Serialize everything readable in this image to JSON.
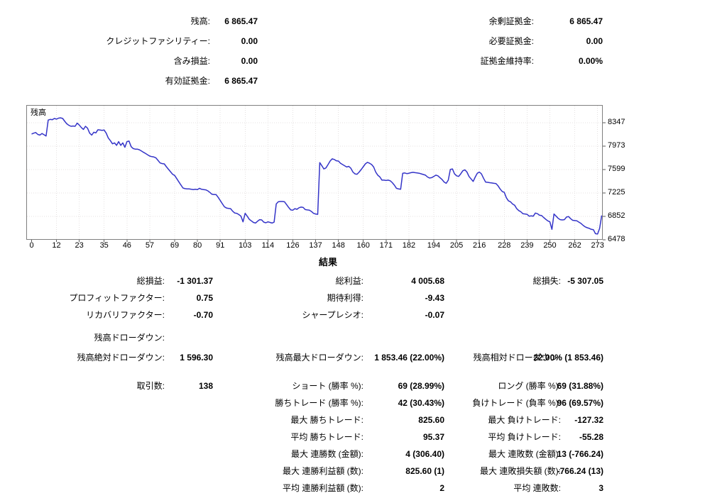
{
  "summary": {
    "left": [
      {
        "label": "残高:",
        "value": "6 865.47"
      },
      {
        "label": "クレジットファシリティー:",
        "value": "0.00"
      },
      {
        "label": "含み損益:",
        "value": "0.00"
      },
      {
        "label": "有効証拠金:",
        "value": "6 865.47"
      }
    ],
    "right": [
      {
        "label": "余剰証拠金:",
        "value": "6 865.47"
      },
      {
        "label": "必要証拠金:",
        "value": "0.00"
      },
      {
        "label": "証拠金維持率:",
        "value": "0.00%"
      }
    ]
  },
  "results": {
    "title": "結果",
    "row1": {
      "c1l": "総損益:",
      "c1v": "-1 301.37",
      "c2l": "総利益:",
      "c2v": "4 005.68",
      "c3l": "総損失:",
      "c3v": "-5 307.05"
    },
    "row2": {
      "c1l": "プロフィットファクター:",
      "c1v": "0.75",
      "c2l": "期待利得:",
      "c2v": "-9.43"
    },
    "row3": {
      "c1l": "リカバリファクター:",
      "c1v": "-0.70",
      "c2l": "シャープレシオ:",
      "c2v": "-0.07"
    },
    "dd_header": "残高ドローダウン:",
    "dd": {
      "c1l": "残高絶対ドローダウン:",
      "c1v": "1 596.30",
      "c2l": "残高最大ドローダウン:",
      "c2v": "1 853.46 (22.00%)",
      "c3l": "残高相対ドローダウン:",
      "c3v": "22.00% (1 853.46)"
    },
    "t1": {
      "c1l": "取引数:",
      "c1v": "138",
      "c2l": "ショート (勝率 %):",
      "c2v": "69 (28.99%)",
      "c3l": "ロング (勝率 %):",
      "c3v": "69 (31.88%)"
    },
    "t2": {
      "c2l": "勝ちトレード (勝率 %):",
      "c2v": "42 (30.43%)",
      "c3l": "負けトレード (負率 %):",
      "c3v": "96 (69.57%)"
    },
    "t3": {
      "c2l": "最大 勝ちトレード:",
      "c2v": "825.60",
      "c3l": "最大 負けトレード:",
      "c3v": "-127.32"
    },
    "t4": {
      "c2l": "平均 勝ちトレード:",
      "c2v": "95.37",
      "c3l": "平均 負けトレード:",
      "c3v": "-55.28"
    },
    "t5": {
      "c2l": "最大 連勝数 (金額):",
      "c2v": "4 (306.40)",
      "c3l": "最大 連敗数 (金額):",
      "c3v": "13 (-766.24)"
    },
    "t6": {
      "c2l": "最大 連勝利益額 (数):",
      "c2v": "825.60 (1)",
      "c3l": "最大 連敗損失額 (数):",
      "c3v": "-766.24 (13)"
    },
    "t7": {
      "c2l": "平均 連勝利益額 (数):",
      "c2v": "2",
      "c3l": "平均 連敗数:",
      "c3v": "3"
    }
  },
  "chart_data": {
    "type": "line",
    "title": "残高",
    "legend": "残高",
    "line_color": "#3434c8",
    "x_start": 0,
    "x_step": 1,
    "xlim": [
      0,
      275
    ],
    "ylim": [
      6478,
      8630
    ],
    "x_ticks": [
      0,
      12,
      23,
      35,
      46,
      57,
      69,
      80,
      91,
      103,
      114,
      126,
      137,
      148,
      160,
      171,
      182,
      194,
      205,
      216,
      228,
      239,
      250,
      262,
      273
    ],
    "y_ticks": [
      8347,
      7973,
      7599,
      7225,
      6852,
      6478
    ],
    "series": [
      {
        "name": "残高",
        "y": [
          8167,
          8180,
          8190,
          8160,
          8150,
          8175,
          8155,
          8135,
          8390,
          8400,
          8395,
          8415,
          8405,
          8420,
          8425,
          8415,
          8370,
          8330,
          8305,
          8290,
          8295,
          8290,
          8340,
          8310,
          8270,
          8240,
          8290,
          8260,
          8180,
          8150,
          8195,
          8185,
          8235,
          8230,
          8225,
          8230,
          8180,
          8105,
          8060,
          8010,
          8025,
          7985,
          8045,
          7985,
          8025,
          7955,
          8045,
          8055,
          7965,
          7935,
          7925,
          7925,
          7915,
          7895,
          7875,
          7855,
          7835,
          7815,
          7805,
          7800,
          7785,
          7745,
          7705,
          7695,
          7690,
          7645,
          7605,
          7565,
          7525,
          7505,
          7455,
          7405,
          7355,
          7305,
          7295,
          7290,
          7290,
          7285,
          7280,
          7285,
          7280,
          7300,
          7285,
          7280,
          7275,
          7260,
          7235,
          7205,
          7200,
          7200,
          7155,
          7105,
          7055,
          7005,
          6985,
          6980,
          6975,
          6935,
          6905,
          6900,
          6880,
          6855,
          6765,
          6900,
          6855,
          6805,
          6780,
          6755,
          6745,
          6775,
          6800,
          6795,
          6760,
          6750,
          6765,
          6755,
          6745,
          6760,
          7050,
          7085,
          7090,
          7090,
          7085,
          7040,
          6995,
          6955,
          6950,
          6975,
          6965,
          6990,
          7000,
          6995,
          6960,
          6955,
          6950,
          6930,
          6900,
          6890,
          6885,
          7710,
          7660,
          7610,
          7625,
          7680,
          7735,
          7770,
          7760,
          7740,
          7735,
          7700,
          7680,
          7660,
          7640,
          7650,
          7620,
          7560,
          7530,
          7525,
          7560,
          7600,
          7645,
          7690,
          7715,
          7700,
          7680,
          7640,
          7560,
          7510,
          7480,
          7430,
          7430,
          7425,
          7430,
          7420,
          7390,
          7350,
          7300,
          7290,
          7285,
          7540,
          7545,
          7535,
          7540,
          7550,
          7555,
          7550,
          7545,
          7540,
          7530,
          7520,
          7510,
          7480,
          7465,
          7470,
          7490,
          7510,
          7500,
          7470,
          7440,
          7400,
          7380,
          7430,
          7600,
          7610,
          7530,
          7500,
          7490,
          7530,
          7580,
          7595,
          7560,
          7490,
          7450,
          7410,
          7480,
          7540,
          7560,
          7530,
          7460,
          7400,
          7395,
          7390,
          7385,
          7380,
          7375,
          7340,
          7290,
          7250,
          7235,
          7150,
          7100,
          7085,
          7050,
          7030,
          6975,
          6945,
          6925,
          6895,
          6890,
          6885,
          6855,
          6860,
          6855,
          6905,
          6895,
          6870,
          6865,
          6835,
          6805,
          6780,
          6765,
          6645,
          6890,
          6855,
          6820,
          6800,
          6795,
          6800,
          6840,
          6850,
          6815,
          6790,
          6785,
          6780,
          6760,
          6740,
          6710,
          6685,
          6670,
          6660,
          6645,
          6640,
          6575,
          6570,
          6660,
          6865
        ]
      }
    ]
  }
}
